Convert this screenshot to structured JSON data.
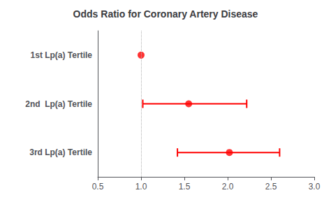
{
  "chart_data": {
    "type": "scatter",
    "title": "Odds Ratio for Coronary Artery Disease",
    "categories": [
      "1st Lp(a) Tertile",
      "2nd  Lp(a) Tertile",
      "3rd Lp(a) Tertile"
    ],
    "values": [
      1.0,
      1.55,
      2.02
    ],
    "ci_low": [
      1.0,
      1.02,
      1.42
    ],
    "ci_high": [
      1.0,
      2.22,
      2.6
    ],
    "reference_line": 1.0,
    "color": "#ff0000",
    "xlim": [
      0.5,
      3.0
    ],
    "xticks": [
      0.5,
      {
        "value": 1.0,
        "label": "1.0"
      },
      1.5,
      {
        "value": 2.0,
        "label": "2.0"
      },
      2.5,
      {
        "value": 3.0,
        "label": "3.0"
      }
    ],
    "grid": false
  }
}
